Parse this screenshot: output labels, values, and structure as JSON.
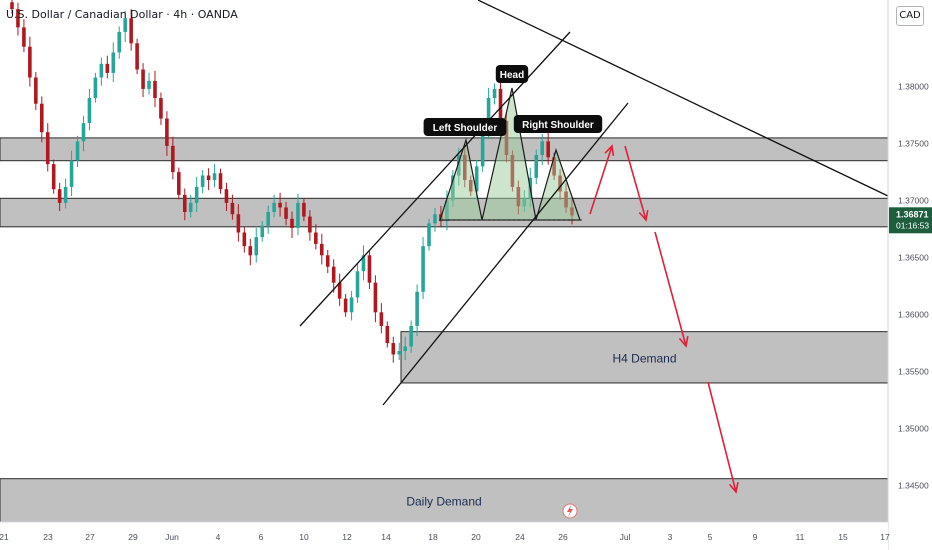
{
  "header": {
    "symbol_title": "U.S. Dollar / Canadian Dollar · 4h · OANDA",
    "currency_badge": "CAD"
  },
  "price_label": {
    "price": "1.36871",
    "countdown": "01:16:53"
  },
  "colors": {
    "up": "#26a69a",
    "down": "#b2171f",
    "zone_fill": "#b9b9b9",
    "pattern_fill": "#9ccc9c",
    "projection": "#e0203a",
    "price_tag": "#1e5e3e"
  },
  "chart_data": {
    "type": "candlestick",
    "y_axis": {
      "range": [
        1.3418,
        1.3876
      ],
      "ticks": [
        "1.38000",
        "1.37500",
        "1.37000",
        "1.36500",
        "1.36000",
        "1.35500",
        "1.35000",
        "1.34500"
      ]
    },
    "x_axis": {
      "ticks": [
        "21",
        "23",
        "27",
        "29",
        "Jun",
        "4",
        "6",
        "10",
        "12",
        "14",
        "18",
        "20",
        "24",
        "26",
        "Jul",
        "3",
        "5",
        "9",
        "11",
        "15",
        "17"
      ]
    },
    "zones": [
      {
        "low": 1.3677,
        "high": 1.3702,
        "label": ""
      },
      {
        "low": 1.3735,
        "high": 1.3755,
        "label": ""
      },
      {
        "low": 1.354,
        "high": 1.3585,
        "label": "H4 Demand"
      },
      {
        "low": 1.3418,
        "high": 1.3456,
        "label": "Daily Demand"
      }
    ],
    "pattern_labels": [
      "Left Shoulder",
      "Head",
      "Right Shoulder"
    ],
    "closes": [
      1.3868,
      1.3852,
      1.3835,
      1.3808,
      1.3785,
      1.376,
      1.3732,
      1.371,
      1.3698,
      1.3712,
      1.3735,
      1.3752,
      1.3768,
      1.379,
      1.3808,
      1.382,
      1.3812,
      1.383,
      1.3848,
      1.386,
      1.3838,
      1.3815,
      1.3798,
      1.3805,
      1.379,
      1.3772,
      1.3748,
      1.3725,
      1.3705,
      1.369,
      1.3698,
      1.3712,
      1.3722,
      1.3718,
      1.3724,
      1.371,
      1.3698,
      1.3688,
      1.3672,
      1.366,
      1.3652,
      1.3668,
      1.3678,
      1.369,
      1.3698,
      1.3694,
      1.3684,
      1.3676,
      1.3698,
      1.3686,
      1.3672,
      1.3662,
      1.3652,
      1.3642,
      1.3628,
      1.3614,
      1.3602,
      1.3615,
      1.3638,
      1.3652,
      1.3628,
      1.3602,
      1.359,
      1.3575,
      1.3565,
      1.3568,
      1.3572,
      1.359,
      1.362,
      1.366,
      1.368,
      1.3688,
      1.3682,
      1.37,
      1.3722,
      1.374,
      1.3718,
      1.3708,
      1.373,
      1.3762,
      1.379,
      1.3798,
      1.377,
      1.374,
      1.3712,
      1.3695,
      1.3702,
      1.372,
      1.374,
      1.3752,
      1.3738,
      1.3722,
      1.3708,
      1.3694,
      1.3687
    ]
  }
}
